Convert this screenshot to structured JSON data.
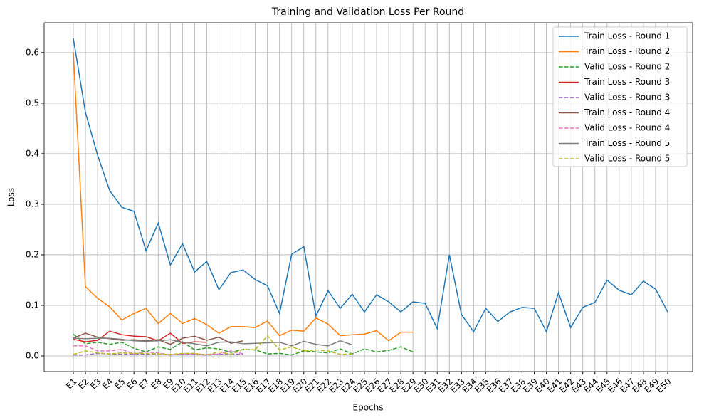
{
  "chart_data": {
    "type": "line",
    "title": "Training and Validation Loss Per Round",
    "x_label": "Epochs",
    "y_label": "Loss",
    "categories": [
      "E1",
      "E2",
      "E3",
      "E4",
      "E5",
      "E6",
      "E7",
      "E8",
      "E9",
      "E10",
      "E11",
      "E12",
      "E13",
      "E14",
      "E15",
      "E16",
      "E17",
      "E18",
      "E19",
      "E20",
      "E21",
      "E22",
      "E23",
      "E24",
      "E25",
      "E26",
      "E27",
      "E28",
      "E29",
      "E30",
      "E31",
      "E32",
      "E33",
      "E34",
      "E35",
      "E36",
      "E37",
      "E38",
      "E39",
      "E40",
      "E41",
      "E42",
      "E43",
      "E44",
      "E45",
      "E46",
      "E47",
      "E48",
      "E49",
      "E50"
    ],
    "ylim": [
      -0.031,
      0.659
    ],
    "yticks": [
      {
        "value": 0,
        "label": "0.0"
      },
      0.1,
      0.2,
      0.3,
      0.4,
      0.5,
      0.6
    ],
    "grid": true,
    "legend": "upper right",
    "series": [
      {
        "name": "Train Loss - Round 1",
        "color": "#1f77b4",
        "dashed": false,
        "values": [
          0.628,
          0.482,
          0.397,
          0.327,
          0.294,
          0.286,
          0.208,
          0.263,
          0.18,
          0.222,
          0.166,
          0.187,
          0.131,
          0.165,
          0.17,
          0.151,
          0.139,
          0.084,
          0.201,
          0.216,
          0.079,
          0.129,
          0.094,
          0.122,
          0.087,
          0.121,
          0.107,
          0.087,
          0.107,
          0.104,
          0.054,
          0.2,
          0.082,
          0.048,
          0.094,
          0.068,
          0.087,
          0.096,
          0.094,
          0.048,
          0.125,
          0.056,
          0.096,
          0.106,
          0.15,
          0.13,
          0.121,
          0.148,
          0.132,
          0.087
        ]
      },
      {
        "name": "Train Loss - Round 2",
        "color": "#ff7f0e",
        "dashed": false,
        "values": [
          0.6,
          0.137,
          0.114,
          0.097,
          0.071,
          0.084,
          0.094,
          0.064,
          0.084,
          0.064,
          0.074,
          0.062,
          0.045,
          0.058,
          0.058,
          0.056,
          0.069,
          0.04,
          0.051,
          0.049,
          0.075,
          0.063,
          0.04,
          0.042,
          0.043,
          0.05,
          0.03,
          0.047,
          0.047,
          null,
          null,
          null,
          null,
          null,
          null,
          null,
          null,
          null,
          null,
          null,
          null,
          null,
          null,
          null,
          null,
          null,
          null,
          null,
          null,
          null
        ]
      },
      {
        "name": "Valid Loss - Round 2",
        "color": "#2ca02c",
        "dashed": true,
        "values": [
          0.043,
          0.024,
          0.027,
          0.023,
          0.027,
          0.015,
          0.008,
          0.018,
          0.013,
          0.028,
          0.012,
          0.016,
          0.014,
          0.007,
          0.013,
          0.012,
          0.004,
          0.005,
          0.002,
          0.01,
          0.008,
          0.006,
          0.014,
          0.004,
          0.014,
          0.008,
          0.011,
          0.018,
          0.008,
          null,
          null,
          null,
          null,
          null,
          null,
          null,
          null,
          null,
          null,
          null,
          null,
          null,
          null,
          null,
          null,
          null,
          null,
          null,
          null,
          null
        ]
      },
      {
        "name": "Train Loss - Round 3",
        "color": "#d62728",
        "dashed": false,
        "values": [
          0.033,
          0.028,
          0.031,
          0.049,
          0.042,
          0.039,
          0.038,
          0.03,
          0.045,
          0.025,
          0.028,
          0.027,
          null,
          null,
          null,
          null,
          null,
          null,
          null,
          null,
          null,
          null,
          null,
          null,
          null,
          null,
          null,
          null,
          null,
          null,
          null,
          null,
          null,
          null,
          null,
          null,
          null,
          null,
          null,
          null,
          null,
          null,
          null,
          null,
          null,
          null,
          null,
          null,
          null,
          null
        ]
      },
      {
        "name": "Valid Loss - Round 3",
        "color": "#9467bd",
        "dashed": true,
        "values": [
          0.002,
          0.002,
          0.005,
          0.004,
          0.003,
          0.004,
          0.003,
          0.004,
          0.002,
          0.004,
          0.003,
          0.002,
          0.003,
          0.004,
          0.003,
          null,
          null,
          null,
          null,
          null,
          null,
          null,
          null,
          null,
          null,
          null,
          null,
          null,
          null,
          null,
          null,
          null,
          null,
          null,
          null,
          null,
          null,
          null,
          null,
          null,
          null,
          null,
          null,
          null,
          null,
          null,
          null,
          null,
          null,
          null
        ]
      },
      {
        "name": "Train Loss - Round 4",
        "color": "#8c564b",
        "dashed": false,
        "values": [
          0.035,
          0.045,
          0.037,
          0.034,
          0.031,
          0.032,
          0.03,
          0.032,
          0.023,
          0.035,
          0.039,
          0.031,
          0.037,
          0.025,
          0.03,
          null,
          null,
          null,
          null,
          null,
          null,
          null,
          null,
          null,
          null,
          null,
          null,
          null,
          null,
          null,
          null,
          null,
          null,
          null,
          null,
          null,
          null,
          null,
          null,
          null,
          null,
          null,
          null,
          null,
          null,
          null,
          null,
          null,
          null,
          null
        ]
      },
      {
        "name": "Valid Loss - Round 4",
        "color": "#e377c2",
        "dashed": true,
        "values": [
          0.02,
          0.02,
          0.01,
          0.01,
          0.013,
          0.004,
          0.008,
          0.006,
          0.002,
          0.004,
          0.004,
          0.003,
          0.004,
          0.01,
          0.004,
          null,
          null,
          null,
          null,
          null,
          null,
          null,
          null,
          null,
          null,
          null,
          null,
          null,
          null,
          null,
          null,
          null,
          null,
          null,
          null,
          null,
          null,
          null,
          null,
          null,
          null,
          null,
          null,
          null,
          null,
          null,
          null,
          null,
          null,
          null
        ]
      },
      {
        "name": "Train Loss - Round 5",
        "color": "#7f7f7f",
        "dashed": false,
        "values": [
          0.035,
          0.034,
          0.035,
          0.035,
          0.033,
          0.03,
          0.029,
          0.03,
          0.032,
          0.027,
          0.024,
          0.02,
          0.027,
          0.028,
          0.024,
          0.025,
          0.026,
          0.027,
          0.02,
          0.029,
          0.023,
          0.02,
          0.03,
          0.022,
          null,
          null,
          null,
          null,
          null,
          null,
          null,
          null,
          null,
          null,
          null,
          null,
          null,
          null,
          null,
          null,
          null,
          null,
          null,
          null,
          null,
          null,
          null,
          null,
          null,
          null
        ]
      },
      {
        "name": "Valid Loss - Round 5",
        "color": "#bcbd22",
        "dashed": true,
        "values": [
          0.003,
          0.01,
          0.006,
          0.004,
          0.006,
          0.005,
          0.005,
          0.004,
          0.003,
          0.005,
          0.005,
          0.002,
          0.008,
          0.003,
          0.013,
          0.012,
          0.04,
          0.012,
          0.018,
          0.01,
          0.012,
          0.01,
          0.003,
          0.004,
          null,
          null,
          null,
          null,
          null,
          null,
          null,
          null,
          null,
          null,
          null,
          null,
          null,
          null,
          null,
          null,
          null,
          null,
          null,
          null,
          null,
          null,
          null,
          null,
          null,
          null
        ]
      }
    ]
  }
}
